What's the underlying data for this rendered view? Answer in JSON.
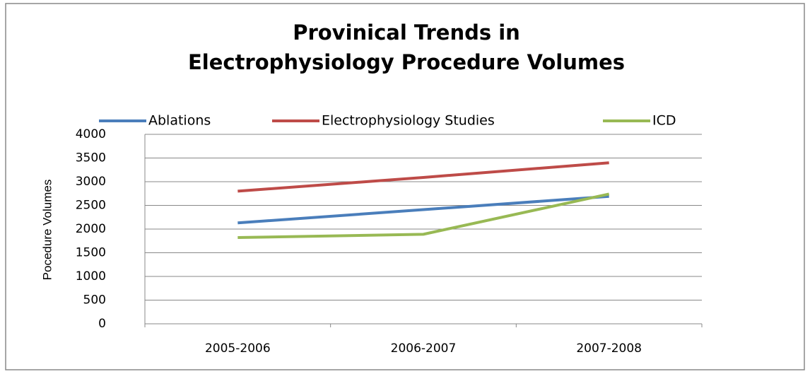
{
  "chart_data": {
    "type": "line",
    "title": [
      "Provinical Trends in",
      "Electrophysiology Procedure Volumes"
    ],
    "y_label": "Pocedure Volumes",
    "categories": [
      "2005-2006",
      "2006-2007",
      "2007-2008"
    ],
    "series": [
      {
        "name": "Ablations",
        "color": "#4a7ebb",
        "values": [
          2130,
          2410,
          2690
        ]
      },
      {
        "name": "Electrophysiology Studies",
        "color": "#be4b48",
        "values": [
          2800,
          3090,
          3400
        ]
      },
      {
        "name": "ICD",
        "color": "#98b954",
        "values": [
          1820,
          1890,
          2740
        ]
      }
    ],
    "ylim": [
      0,
      4000
    ],
    "yticks": [
      0,
      500,
      1000,
      1500,
      2000,
      2500,
      3000,
      3500,
      4000
    ],
    "grid": true,
    "legend": "top"
  }
}
